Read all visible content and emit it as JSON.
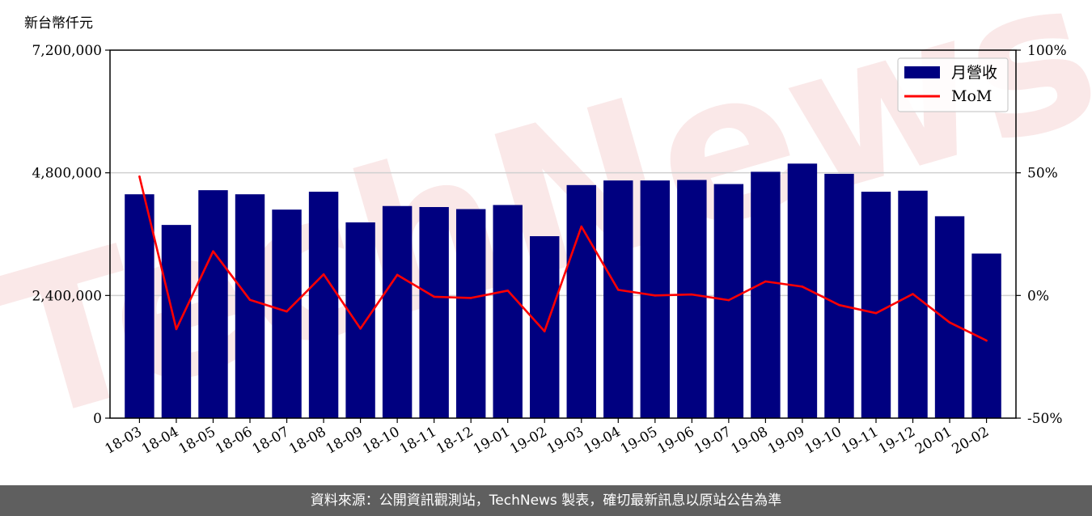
{
  "unit_label": "新台幣仟元",
  "footer_text": "資料來源：公開資訊觀測站，TechNews 製表，確切最新訊息以原站公告為準",
  "watermark": "TechNews",
  "colors": {
    "bar": "#000080",
    "line": "#ff0000",
    "grid": "#d0d0d0",
    "footer_bg": "#5f5f5f"
  },
  "chart_data": {
    "type": "bar",
    "categories": [
      "18-03",
      "18-04",
      "18-05",
      "18-06",
      "18-07",
      "18-08",
      "18-09",
      "18-10",
      "18-11",
      "18-12",
      "19-01",
      "19-02",
      "19-03",
      "19-04",
      "19-05",
      "19-06",
      "19-07",
      "19-08",
      "19-09",
      "19-10",
      "19-11",
      "19-12",
      "20-01",
      "20-02"
    ],
    "series": [
      {
        "name": "月營收",
        "type": "bar",
        "axis": "left",
        "values": [
          4380000,
          3780000,
          4460000,
          4380000,
          4080000,
          4430000,
          3830000,
          4150000,
          4130000,
          4090000,
          4170000,
          3560000,
          4560000,
          4650000,
          4650000,
          4660000,
          4580000,
          4820000,
          4980000,
          4780000,
          4430000,
          4450000,
          3950000,
          3220000
        ]
      },
      {
        "name": "MoM",
        "type": "line",
        "axis": "right",
        "values": [
          48.5,
          -13.7,
          18.0,
          -1.8,
          -6.5,
          8.6,
          -13.5,
          8.4,
          -0.5,
          -1.0,
          2.0,
          -14.6,
          28.1,
          2.3,
          0.0,
          0.4,
          -1.9,
          5.7,
          3.6,
          -3.9,
          -7.2,
          0.6,
          -11.0,
          -18.4
        ]
      }
    ],
    "ylim_left": [
      0,
      7200000
    ],
    "yticks_left": [
      "0",
      "2,400,000",
      "4,800,000",
      "7,200,000"
    ],
    "ylim_right": [
      -50,
      100
    ],
    "yticks_right": [
      "-50%",
      "0%",
      "50%",
      "100%"
    ],
    "grid": true,
    "legend_position": "top-right"
  }
}
